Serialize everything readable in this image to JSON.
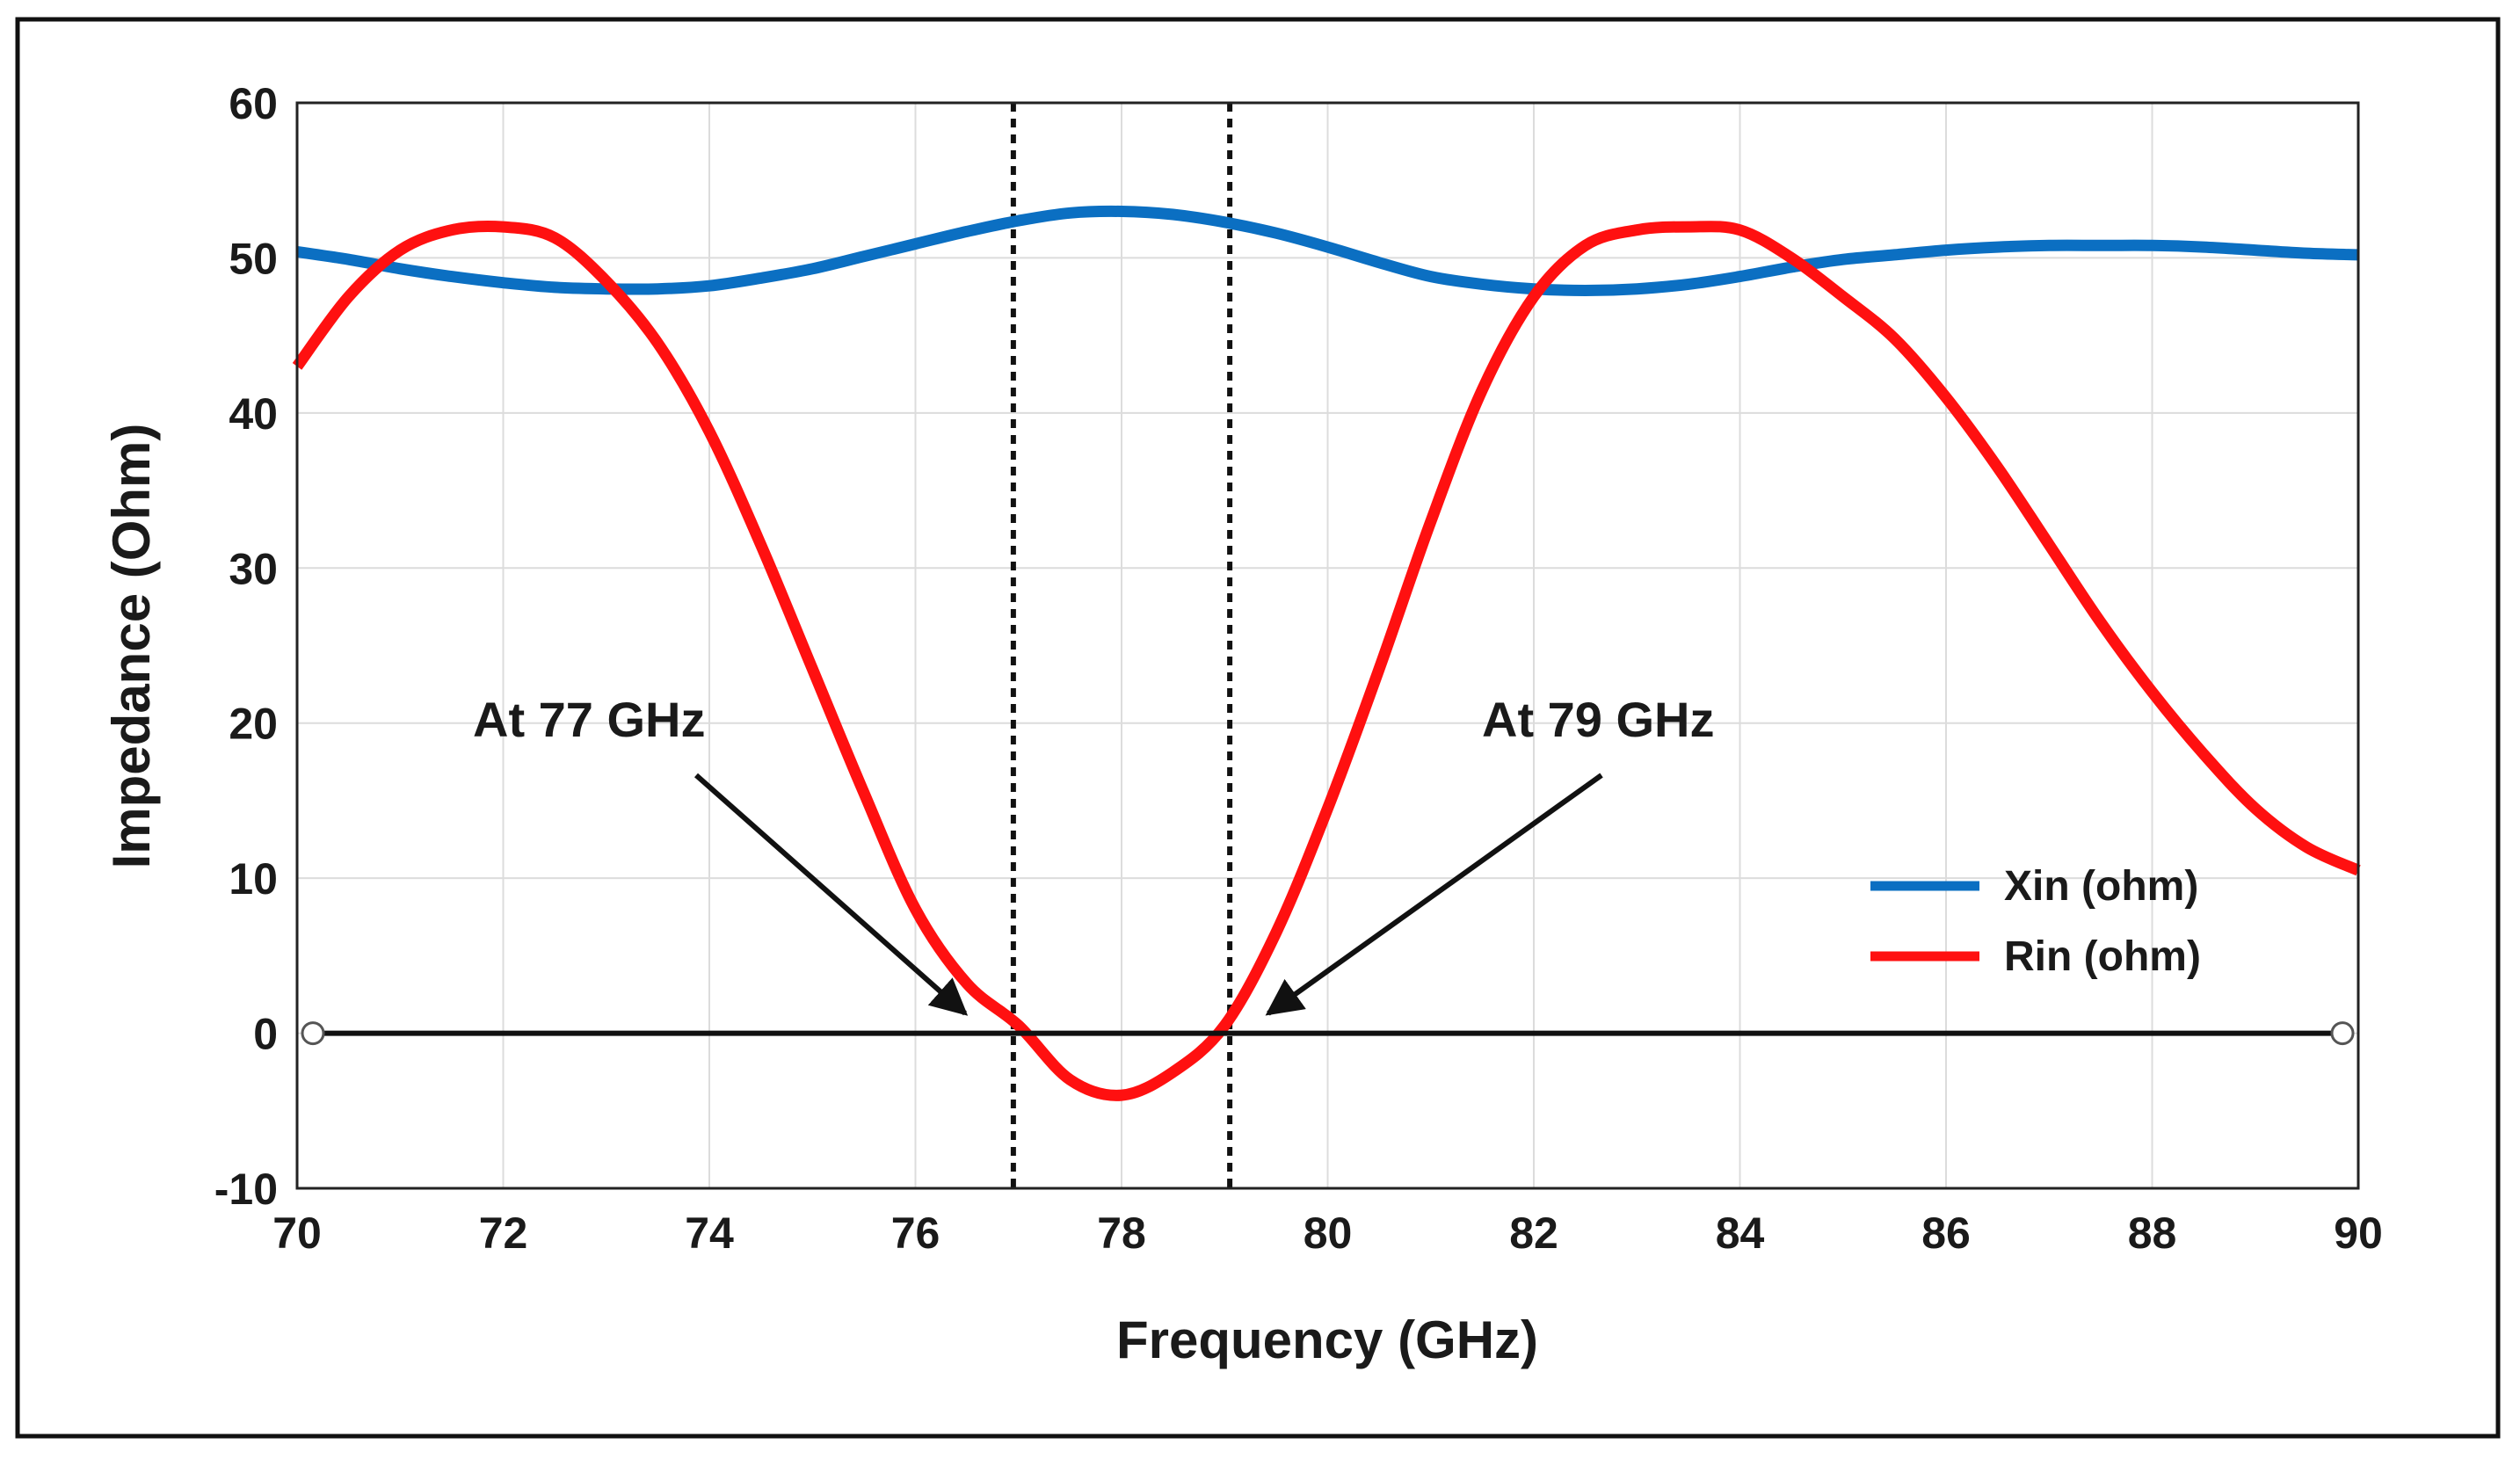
{
  "chart_data": {
    "type": "line",
    "title": "",
    "xlabel": "Frequency (GHz)",
    "ylabel": "Impedance (Ohm)",
    "xlim": [
      70,
      90
    ],
    "ylim": [
      -10,
      60
    ],
    "xticks": [
      70,
      72,
      74,
      76,
      78,
      80,
      82,
      84,
      86,
      88,
      90
    ],
    "yticks": [
      -10,
      0,
      10,
      20,
      30,
      40,
      50,
      60
    ],
    "grid": true,
    "legend_position": "lower-right",
    "x": [
      70,
      70.5,
      71,
      71.5,
      72,
      72.5,
      73,
      73.5,
      74,
      74.5,
      75,
      75.5,
      76,
      76.5,
      77,
      77.5,
      78,
      78.5,
      79,
      79.5,
      80,
      80.5,
      81,
      81.5,
      82,
      82.5,
      83,
      83.5,
      84,
      84.5,
      85,
      85.5,
      86,
      86.5,
      87,
      87.5,
      88,
      88.5,
      89,
      89.5,
      90
    ],
    "series": [
      {
        "name": "Xin (ohm)",
        "color": "#0b6fc2",
        "values": [
          50.4,
          49.9,
          49.3,
          48.8,
          48.4,
          48.1,
          48.0,
          48.0,
          48.2,
          48.7,
          49.3,
          50.1,
          50.9,
          51.7,
          52.4,
          52.9,
          53.0,
          52.8,
          52.3,
          51.6,
          50.7,
          49.7,
          48.8,
          48.3,
          48.0,
          47.9,
          48.0,
          48.3,
          48.8,
          49.4,
          49.9,
          50.2,
          50.5,
          50.7,
          50.8,
          50.8,
          50.8,
          50.7,
          50.5,
          50.3,
          50.2
        ]
      },
      {
        "name": "Rin (ohm)",
        "color": "#ff1010",
        "values": [
          43.0,
          47.5,
          50.5,
          51.8,
          52.0,
          51.3,
          48.5,
          44.5,
          38.8,
          31.5,
          23.5,
          15.5,
          8.0,
          3.2,
          0.5,
          -3.0,
          -4.0,
          -2.5,
          0.5,
          6.5,
          14.5,
          23.5,
          33.0,
          41.5,
          47.5,
          50.8,
          51.8,
          52.0,
          51.8,
          50.0,
          47.5,
          44.8,
          41.0,
          36.5,
          31.5,
          26.5,
          22.0,
          18.0,
          14.5,
          12.0,
          10.5
        ]
      }
    ],
    "reference_lines": {
      "zero_line_y": 0,
      "dashed_x": [
        76.95,
        79.05
      ]
    },
    "annotations": [
      {
        "text": "At 77 GHz",
        "x": 76.95,
        "y": 0
      },
      {
        "text": "At 79 GHz",
        "x": 79.05,
        "y": 0
      }
    ]
  }
}
